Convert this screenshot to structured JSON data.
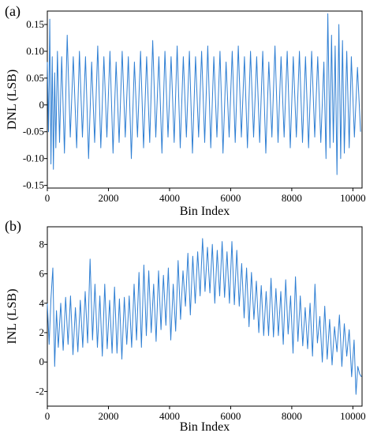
{
  "chart_data": [
    {
      "panel_label": "(a)",
      "type": "line",
      "xlabel": "Bin Index",
      "ylabel": "DNL (LSB)",
      "xlim": [
        0,
        10300
      ],
      "ylim": [
        -0.155,
        0.175
      ],
      "xticks": [
        0,
        2000,
        4000,
        6000,
        8000,
        10000
      ],
      "xtick_labels": [
        "0",
        "2000",
        "4000",
        "6000",
        "8000",
        "10000"
      ],
      "yticks": [
        -0.15,
        -0.1,
        -0.05,
        0,
        0.05,
        0.1,
        0.15
      ],
      "ytick_labels": [
        "-0.15",
        "-0.10",
        "-0.05",
        "0",
        "0.05",
        "0.10",
        "0.15"
      ],
      "line_color": "#2f7fd3",
      "grid": false,
      "x": [
        0,
        40,
        80,
        120,
        160,
        200,
        240,
        280,
        330,
        400,
        470,
        560,
        650,
        750,
        850,
        960,
        1050,
        1150,
        1250,
        1350,
        1450,
        1550,
        1650,
        1750,
        1850,
        1950,
        2050,
        2150,
        2250,
        2350,
        2450,
        2550,
        2650,
        2750,
        2850,
        2950,
        3050,
        3150,
        3250,
        3350,
        3450,
        3550,
        3650,
        3750,
        3850,
        3950,
        4050,
        4150,
        4250,
        4350,
        4450,
        4550,
        4650,
        4750,
        4850,
        4950,
        5050,
        5150,
        5250,
        5350,
        5450,
        5550,
        5650,
        5750,
        5850,
        5950,
        6050,
        6150,
        6250,
        6350,
        6450,
        6550,
        6650,
        6750,
        6850,
        6950,
        7050,
        7150,
        7250,
        7350,
        7450,
        7550,
        7650,
        7750,
        7850,
        7950,
        8050,
        8150,
        8250,
        8350,
        8450,
        8550,
        8650,
        8750,
        8850,
        8950,
        9050,
        9120,
        9180,
        9250,
        9300,
        9360,
        9420,
        9480,
        9540,
        9600,
        9660,
        9720,
        9800,
        9880,
        9950,
        10050,
        10150,
        10250
      ],
      "y": [
        0.08,
        -0.05,
        0.16,
        -0.11,
        0.09,
        -0.12,
        0.06,
        -0.08,
        0.1,
        -0.07,
        0.09,
        -0.09,
        0.13,
        -0.06,
        0.09,
        -0.08,
        0.1,
        -0.06,
        0.09,
        -0.1,
        0.08,
        -0.07,
        0.11,
        -0.08,
        0.09,
        -0.06,
        0.1,
        -0.09,
        0.08,
        -0.07,
        0.1,
        -0.06,
        0.09,
        -0.1,
        0.08,
        -0.06,
        0.1,
        -0.08,
        0.09,
        -0.07,
        0.12,
        -0.06,
        0.09,
        -0.09,
        0.1,
        -0.06,
        0.09,
        -0.07,
        0.11,
        -0.08,
        0.09,
        -0.06,
        0.1,
        -0.09,
        0.09,
        -0.06,
        0.1,
        -0.07,
        0.11,
        -0.08,
        0.09,
        -0.06,
        0.1,
        -0.09,
        0.08,
        -0.06,
        0.1,
        -0.07,
        0.11,
        -0.06,
        0.09,
        -0.08,
        0.1,
        -0.06,
        0.09,
        -0.07,
        0.1,
        -0.09,
        0.08,
        -0.06,
        0.11,
        -0.07,
        0.09,
        -0.06,
        0.1,
        -0.08,
        0.09,
        -0.06,
        0.1,
        -0.07,
        0.09,
        -0.08,
        0.1,
        -0.06,
        0.09,
        -0.07,
        0.08,
        -0.1,
        0.17,
        -0.08,
        0.13,
        -0.07,
        0.11,
        -0.13,
        0.15,
        -0.1,
        0.12,
        -0.09,
        0.1,
        -0.08,
        0.09,
        -0.06,
        0.07,
        -0.05
      ]
    },
    {
      "panel_label": "(b)",
      "type": "line",
      "xlabel": "Bin Index",
      "ylabel": "INL (LSB)",
      "xlim": [
        0,
        10300
      ],
      "ylim": [
        -3,
        9.2
      ],
      "xticks": [
        0,
        2000,
        4000,
        6000,
        8000,
        10000
      ],
      "xtick_labels": [
        "0",
        "2000",
        "4000",
        "6000",
        "8000",
        "10000"
      ],
      "yticks": [
        -2,
        0,
        2,
        4,
        6,
        8
      ],
      "ytick_labels": [
        "-2",
        "0",
        "2",
        "4",
        "6",
        "8"
      ],
      "line_color": "#2f7fd3",
      "grid": false,
      "x": [
        0,
        60,
        120,
        180,
        240,
        300,
        360,
        440,
        520,
        600,
        680,
        760,
        840,
        920,
        1000,
        1080,
        1160,
        1240,
        1320,
        1400,
        1480,
        1560,
        1640,
        1720,
        1800,
        1880,
        1960,
        2040,
        2120,
        2200,
        2280,
        2360,
        2440,
        2520,
        2600,
        2680,
        2760,
        2840,
        2920,
        3000,
        3080,
        3160,
        3240,
        3320,
        3400,
        3480,
        3560,
        3640,
        3720,
        3800,
        3880,
        3960,
        4040,
        4120,
        4200,
        4280,
        4360,
        4440,
        4520,
        4600,
        4680,
        4760,
        4840,
        4920,
        5000,
        5080,
        5160,
        5240,
        5320,
        5400,
        5480,
        5560,
        5640,
        5720,
        5800,
        5880,
        5960,
        6040,
        6120,
        6200,
        6280,
        6360,
        6440,
        6520,
        6600,
        6680,
        6760,
        6840,
        6920,
        7000,
        7080,
        7160,
        7240,
        7320,
        7400,
        7480,
        7560,
        7640,
        7720,
        7800,
        7880,
        7960,
        8040,
        8120,
        8200,
        8280,
        8360,
        8440,
        8520,
        8600,
        8680,
        8760,
        8840,
        8920,
        9000,
        9080,
        9160,
        9240,
        9320,
        9400,
        9480,
        9560,
        9640,
        9720,
        9800,
        9880,
        9960,
        10040,
        10100,
        10160,
        10220,
        10280
      ],
      "y": [
        4.0,
        1.2,
        4.3,
        6.4,
        -0.3,
        3.5,
        1.0,
        4.0,
        0.8,
        4.4,
        1.2,
        4.5,
        0.5,
        3.7,
        0.7,
        4.2,
        1.0,
        4.8,
        1.3,
        7.0,
        1.5,
        5.3,
        1.0,
        4.5,
        0.4,
        5.3,
        0.9,
        4.2,
        0.6,
        5.1,
        0.6,
        4.3,
        0.2,
        4.4,
        1.2,
        4.5,
        1.0,
        5.3,
        1.5,
        6.1,
        1.0,
        6.6,
        1.8,
        6.2,
        2.0,
        5.3,
        1.4,
        6.2,
        2.2,
        5.9,
        2.5,
        6.4,
        1.5,
        5.3,
        2.1,
        6.9,
        2.9,
        6.2,
        3.8,
        7.4,
        3.2,
        7.2,
        4.0,
        7.5,
        4.5,
        8.4,
        4.8,
        7.8,
        4.7,
        8.0,
        4.0,
        7.6,
        4.5,
        8.2,
        4.4,
        7.5,
        4.0,
        8.2,
        3.9,
        7.6,
        3.8,
        6.7,
        3.0,
        6.4,
        2.4,
        6.1,
        2.9,
        5.5,
        2.0,
        5.2,
        1.8,
        4.8,
        1.8,
        5.7,
        1.7,
        5.0,
        1.8,
        4.8,
        1.2,
        5.6,
        1.9,
        4.5,
        0.6,
        5.8,
        1.4,
        4.5,
        1.1,
        3.7,
        0.9,
        4.0,
        0.4,
        5.3,
        1.3,
        3.1,
        0.0,
        3.8,
        0.2,
        2.9,
        -0.2,
        2.4,
        0.7,
        3.2,
        -0.3,
        2.6,
        0.4,
        2.2,
        -1.0,
        1.5,
        -2.2,
        -0.3,
        -0.8,
        -1.0
      ]
    }
  ]
}
